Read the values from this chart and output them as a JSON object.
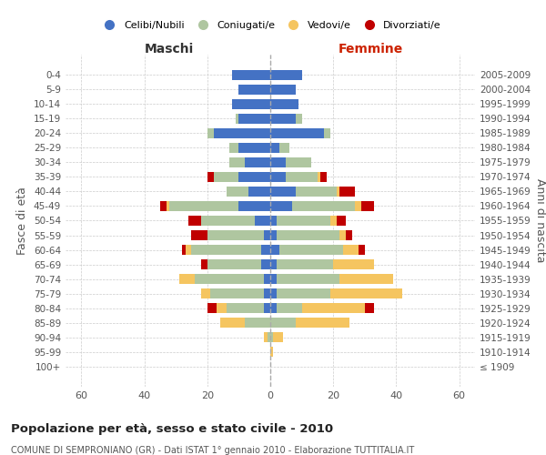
{
  "age_groups": [
    "100+",
    "95-99",
    "90-94",
    "85-89",
    "80-84",
    "75-79",
    "70-74",
    "65-69",
    "60-64",
    "55-59",
    "50-54",
    "45-49",
    "40-44",
    "35-39",
    "30-34",
    "25-29",
    "20-24",
    "15-19",
    "10-14",
    "5-9",
    "0-4"
  ],
  "birth_years": [
    "≤ 1909",
    "1910-1914",
    "1915-1919",
    "1920-1924",
    "1925-1929",
    "1930-1934",
    "1935-1939",
    "1940-1944",
    "1945-1949",
    "1950-1954",
    "1955-1959",
    "1960-1964",
    "1965-1969",
    "1970-1974",
    "1975-1979",
    "1980-1984",
    "1985-1989",
    "1990-1994",
    "1995-1999",
    "2000-2004",
    "2005-2009"
  ],
  "male": {
    "celibi": [
      0,
      0,
      0,
      0,
      2,
      2,
      2,
      3,
      3,
      2,
      5,
      10,
      7,
      10,
      8,
      10,
      18,
      10,
      12,
      10,
      12
    ],
    "coniugati": [
      0,
      0,
      1,
      8,
      12,
      17,
      22,
      17,
      22,
      18,
      17,
      22,
      7,
      8,
      5,
      3,
      2,
      1,
      0,
      0,
      0
    ],
    "vedovi": [
      0,
      0,
      1,
      8,
      3,
      3,
      5,
      0,
      2,
      0,
      0,
      1,
      0,
      0,
      0,
      0,
      0,
      0,
      0,
      0,
      0
    ],
    "divorziati": [
      0,
      0,
      0,
      0,
      3,
      0,
      0,
      2,
      1,
      5,
      4,
      2,
      0,
      2,
      0,
      0,
      0,
      0,
      0,
      0,
      0
    ]
  },
  "female": {
    "nubili": [
      0,
      0,
      0,
      0,
      2,
      2,
      2,
      2,
      3,
      2,
      2,
      7,
      8,
      5,
      5,
      3,
      17,
      8,
      9,
      8,
      10
    ],
    "coniugate": [
      0,
      0,
      1,
      8,
      8,
      17,
      20,
      18,
      20,
      20,
      17,
      20,
      13,
      10,
      8,
      3,
      2,
      2,
      0,
      0,
      0
    ],
    "vedove": [
      0,
      1,
      3,
      17,
      20,
      23,
      17,
      13,
      5,
      2,
      2,
      2,
      1,
      1,
      0,
      0,
      0,
      0,
      0,
      0,
      0
    ],
    "divorziate": [
      0,
      0,
      0,
      0,
      3,
      0,
      0,
      0,
      2,
      2,
      3,
      4,
      5,
      2,
      0,
      0,
      0,
      0,
      0,
      0,
      0
    ]
  },
  "color_celibi": "#4472c4",
  "color_coniugati": "#afc6a0",
  "color_vedovi": "#f5c560",
  "color_divorziati": "#c00000",
  "xlim": 65,
  "title": "Popolazione per età, sesso e stato civile - 2010",
  "subtitle": "COMUNE DI SEMPRONIANO (GR) - Dati ISTAT 1° gennaio 2010 - Elaborazione TUTTITALIA.IT",
  "ylabel_left": "Fasce di età",
  "ylabel_right": "Anni di nascita",
  "xlabel_left": "Maschi",
  "xlabel_right": "Femmine",
  "legend_labels": [
    "Celibi/Nubili",
    "Coniugati/e",
    "Vedovi/e",
    "Divorziati/e"
  ]
}
